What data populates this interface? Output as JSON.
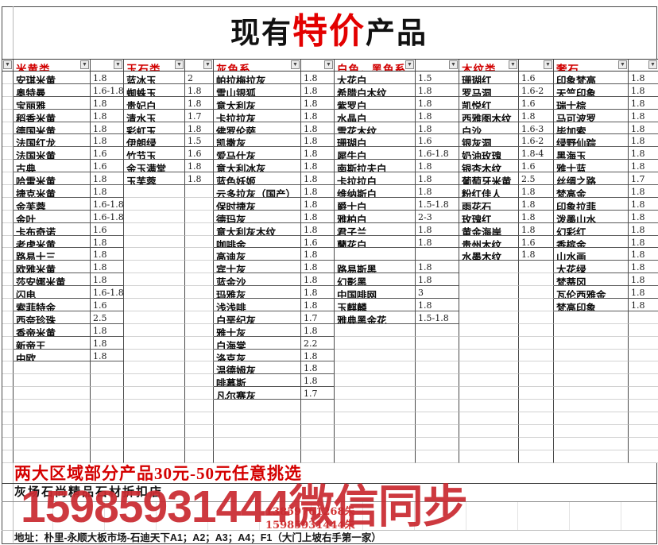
{
  "title": {
    "prefix": "现有",
    "highlight": "特价",
    "suffix": "产品"
  },
  "icons": {
    "filter": "▼"
  },
  "colors": {
    "accent_red": "#d10000",
    "title_red": "#e30000",
    "watermark_red": "#c92a30",
    "grid_dark": "#4a4a4a",
    "grid_light": "#d2d2d2"
  },
  "columns": [
    {
      "header": "米黄类",
      "items": [
        {
          "n": "安琪米黄",
          "p": "1.8"
        },
        {
          "n": "奥特曼",
          "p": "1.6-1.8"
        },
        {
          "n": "宝丽雅",
          "p": "1.8"
        },
        {
          "n": "稻香米黄",
          "p": "1.8"
        },
        {
          "n": "德国米黄",
          "p": "1.8"
        },
        {
          "n": "法国红龙",
          "p": "1.8"
        },
        {
          "n": "法国米黄",
          "p": "1.6"
        },
        {
          "n": "古典",
          "p": "1.6"
        },
        {
          "n": "哈雷米黄",
          "p": "1.8"
        },
        {
          "n": "捷克米黄",
          "p": "1.8"
        },
        {
          "n": "金芙蓉",
          "p": "1.6-1.8"
        },
        {
          "n": "金叶",
          "p": "1.6-1.8"
        },
        {
          "n": "卡布奇诺",
          "p": "1.6"
        },
        {
          "n": "老虎米黄",
          "p": "1.8"
        },
        {
          "n": "路易十三",
          "p": "1.8"
        },
        {
          "n": "欧雅米黄",
          "p": "1.8"
        },
        {
          "n": "莎安娜米黄",
          "p": "1.8"
        },
        {
          "n": "闪电",
          "p": "1.6-1.8"
        },
        {
          "n": "索菲特金",
          "p": "1.6"
        },
        {
          "n": "西奈珍珠",
          "p": "2.5"
        },
        {
          "n": "香帝米黄",
          "p": "1.8"
        },
        {
          "n": "新帝王",
          "p": "1.8"
        },
        {
          "n": "中欧",
          "p": "1.8"
        }
      ]
    },
    {
      "header": "玉石类",
      "items": [
        {
          "n": "蓝冰玉",
          "p": "2"
        },
        {
          "n": "蜘蛛玉",
          "p": "1.8"
        },
        {
          "n": "贵妃白",
          "p": "1.8"
        },
        {
          "n": "清水玉",
          "p": "1.7"
        },
        {
          "n": "彩虹玉",
          "p": "1.8"
        },
        {
          "n": "伊朗绿",
          "p": "1.5"
        },
        {
          "n": "竹节玉",
          "p": "1.6"
        },
        {
          "n": "金玉满堂",
          "p": "1.8"
        },
        {
          "n": "玉芙蓉",
          "p": "1.8"
        }
      ]
    },
    {
      "header": "灰色系",
      "items": [
        {
          "n": "帕拉梅拉灰",
          "p": "1.8"
        },
        {
          "n": "雪山银狐",
          "p": "1.8"
        },
        {
          "n": "意大利灰",
          "p": "1.8"
        },
        {
          "n": "卡拉拉灰",
          "p": "1.8"
        },
        {
          "n": "佛罗伦萨",
          "p": "1.8"
        },
        {
          "n": "凯撒灰",
          "p": "1.8"
        },
        {
          "n": "爱马仕灰",
          "p": "1.8"
        },
        {
          "n": "意大利冰灰",
          "p": "1.8"
        },
        {
          "n": "蓝色妖姬",
          "p": "1.8"
        },
        {
          "n": "云多拉灰（国产）",
          "p": "1.8"
        },
        {
          "n": "保时捷灰",
          "p": "1.8"
        },
        {
          "n": "德玛灰",
          "p": "1.8"
        },
        {
          "n": "意大利灰木纹",
          "p": "1.8"
        },
        {
          "n": "咖啡金",
          "p": "1.6"
        },
        {
          "n": "高迪灰",
          "p": "1.8"
        },
        {
          "n": "宾士灰",
          "p": "1.8"
        },
        {
          "n": "蓝金沙",
          "p": "1.8"
        },
        {
          "n": "玛雅灰",
          "p": "1.8"
        },
        {
          "n": "浅浅啡",
          "p": "1.8"
        },
        {
          "n": "白垩纪灰",
          "p": "1.7"
        },
        {
          "n": "雅士灰",
          "p": "1.8"
        },
        {
          "n": "白海棠",
          "p": "2.2"
        },
        {
          "n": "洛克灰",
          "p": "1.8"
        },
        {
          "n": "温德姆灰",
          "p": "1.8"
        },
        {
          "n": "啡慕斯",
          "p": "1.8"
        },
        {
          "n": "凡尔赛灰",
          "p": "1.7"
        }
      ]
    },
    {
      "header": "白色，黑色系",
      "items": [
        {
          "n": "大花白",
          "p": "1.5"
        },
        {
          "n": "希腊白木纹",
          "p": "1.8"
        },
        {
          "n": "紫罗白",
          "p": "1.8"
        },
        {
          "n": "水晶白",
          "p": "1.8"
        },
        {
          "n": "雪花木纹",
          "p": "1.8"
        },
        {
          "n": "珊瑚白",
          "p": "1.6"
        },
        {
          "n": "犀牛白",
          "p": "1.6-1.8"
        },
        {
          "n": "南斯拉夫白",
          "p": "1.8"
        },
        {
          "n": "卡拉拉白",
          "p": "1.8"
        },
        {
          "n": "维纳斯白",
          "p": "1.8"
        },
        {
          "n": "爵士白",
          "p": "1.5-1.8"
        },
        {
          "n": "雅柏白",
          "p": "2-3"
        },
        {
          "n": "君子兰",
          "p": "1.8"
        },
        {
          "n": "蘭花白",
          "p": "1.8"
        },
        {
          "n": "",
          "p": ""
        },
        {
          "n": "路易斯黑",
          "p": "1.8"
        },
        {
          "n": "幻影黑",
          "p": "1.8"
        },
        {
          "n": "中国啡网",
          "p": "3"
        },
        {
          "n": "玉麒麟",
          "p": "1.8"
        },
        {
          "n": "雅典黑金花",
          "p": "1.5-1.8"
        }
      ]
    },
    {
      "header": "木纹类",
      "items": [
        {
          "n": "珊瑚红",
          "p": "1.6"
        },
        {
          "n": "罗马洞",
          "p": "1.6-2"
        },
        {
          "n": "凯悦红",
          "p": "1.6"
        },
        {
          "n": "西雅图木纹",
          "p": "1.8"
        },
        {
          "n": "白沙",
          "p": "1.6-3"
        },
        {
          "n": "银灰洞",
          "p": "1.6-2"
        },
        {
          "n": "奶油玫瑰",
          "p": "1.8-4"
        },
        {
          "n": "银杏木纹",
          "p": "1.6"
        },
        {
          "n": "葡萄牙米黄",
          "p": "2.5"
        },
        {
          "n": "粉红佳人",
          "p": "1.8"
        },
        {
          "n": "雨花石",
          "p": "1.8"
        },
        {
          "n": "玫瑰红",
          "p": "1.8"
        },
        {
          "n": "黄金海岸",
          "p": "1.8"
        },
        {
          "n": "贵州木纹",
          "p": "1.6"
        },
        {
          "n": "水墨木纹",
          "p": "1.8"
        }
      ]
    },
    {
      "header": "奢石",
      "items": [
        {
          "n": "印象梵高",
          "p": "1.8"
        },
        {
          "n": "天竺印象",
          "p": "1.8"
        },
        {
          "n": "瑞士棕",
          "p": "1.8"
        },
        {
          "n": "马可波罗",
          "p": "1.8"
        },
        {
          "n": "毕加索",
          "p": "1.8"
        },
        {
          "n": "绿野仙踪",
          "p": "1.8"
        },
        {
          "n": "黑海玉",
          "p": "1.8"
        },
        {
          "n": "雅士蓝",
          "p": "1.8"
        },
        {
          "n": "丝绸之路",
          "p": "1.7"
        },
        {
          "n": "梵高金",
          "p": "1.8"
        },
        {
          "n": "印象拉菲",
          "p": "1.8"
        },
        {
          "n": "泼墨山水",
          "p": "1.8"
        },
        {
          "n": "幻彩红",
          "p": "1.8"
        },
        {
          "n": "香槟金",
          "p": "1.8"
        },
        {
          "n": "山水画",
          "p": "1.8"
        },
        {
          "n": "大花绿",
          "p": "1.8"
        },
        {
          "n": "梵蒂冈",
          "p": "1.8"
        },
        {
          "n": "瓦伦西雅金",
          "p": "1.8"
        },
        {
          "n": "梵高印象",
          "p": "1.8"
        }
      ]
    }
  ],
  "footer": {
    "promo": "两大区域部分产品30元-50元任意挑选",
    "shop_name": "灰场石尚精品石材折扣店",
    "phone1": "13859761268朱",
    "phone2": "15985931444朱",
    "watermark": "15985931444微信同步",
    "address": "地址：朴里-永顺大板市场-石迪天下A1；A2；A3；A4；F1（大门上坡右手第一家）"
  }
}
